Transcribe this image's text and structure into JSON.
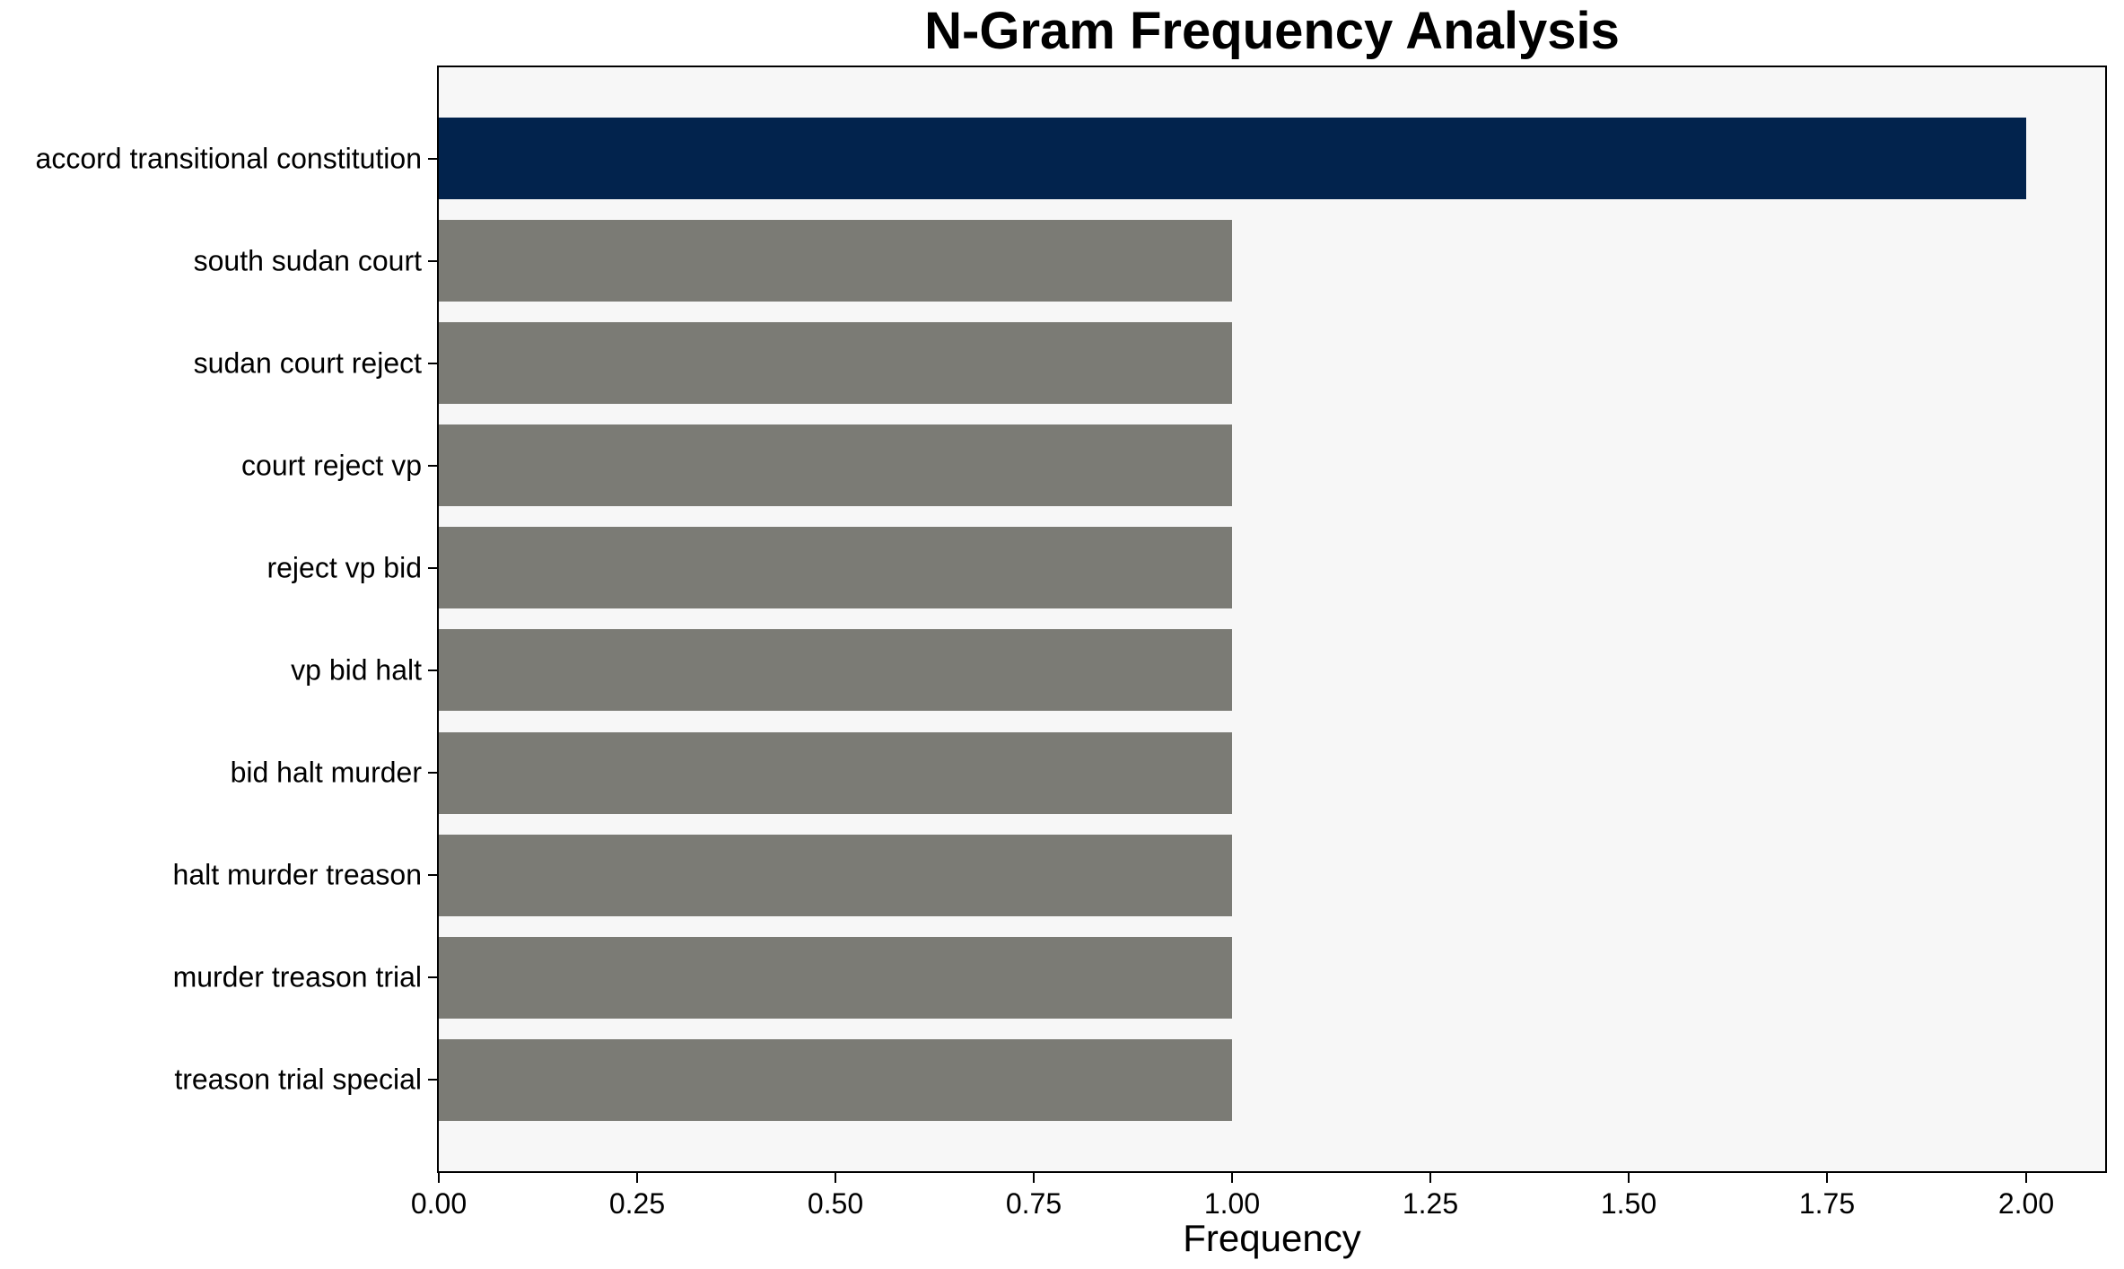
{
  "chart_data": {
    "type": "bar",
    "orientation": "horizontal",
    "title": "N-Gram Frequency Analysis",
    "xlabel": "Frequency",
    "ylabel": "",
    "categories": [
      "accord transitional constitution",
      "south sudan court",
      "sudan court reject",
      "court reject vp",
      "reject vp bid",
      "vp bid halt",
      "bid halt murder",
      "halt murder treason",
      "murder treason trial",
      "treason trial special"
    ],
    "values": [
      2,
      1,
      1,
      1,
      1,
      1,
      1,
      1,
      1,
      1
    ],
    "xlim": [
      0,
      2.1
    ],
    "xticks": [
      {
        "value": 0.0,
        "label": "0.00"
      },
      {
        "value": 0.25,
        "label": "0.25"
      },
      {
        "value": 0.5,
        "label": "0.50"
      },
      {
        "value": 0.75,
        "label": "0.75"
      },
      {
        "value": 1.0,
        "label": "1.00"
      },
      {
        "value": 1.25,
        "label": "1.25"
      },
      {
        "value": 1.5,
        "label": "1.50"
      },
      {
        "value": 1.75,
        "label": "1.75"
      },
      {
        "value": 2.0,
        "label": "2.00"
      }
    ],
    "highlight_index": 0,
    "colors": {
      "highlight_bar": "#02234d",
      "default_bar": "#7b7b75",
      "plot_background": "#f7f7f7",
      "spine": "#000000",
      "text": "#000000",
      "figure_background": "#ffffff"
    },
    "grid": false,
    "legend": null
  }
}
